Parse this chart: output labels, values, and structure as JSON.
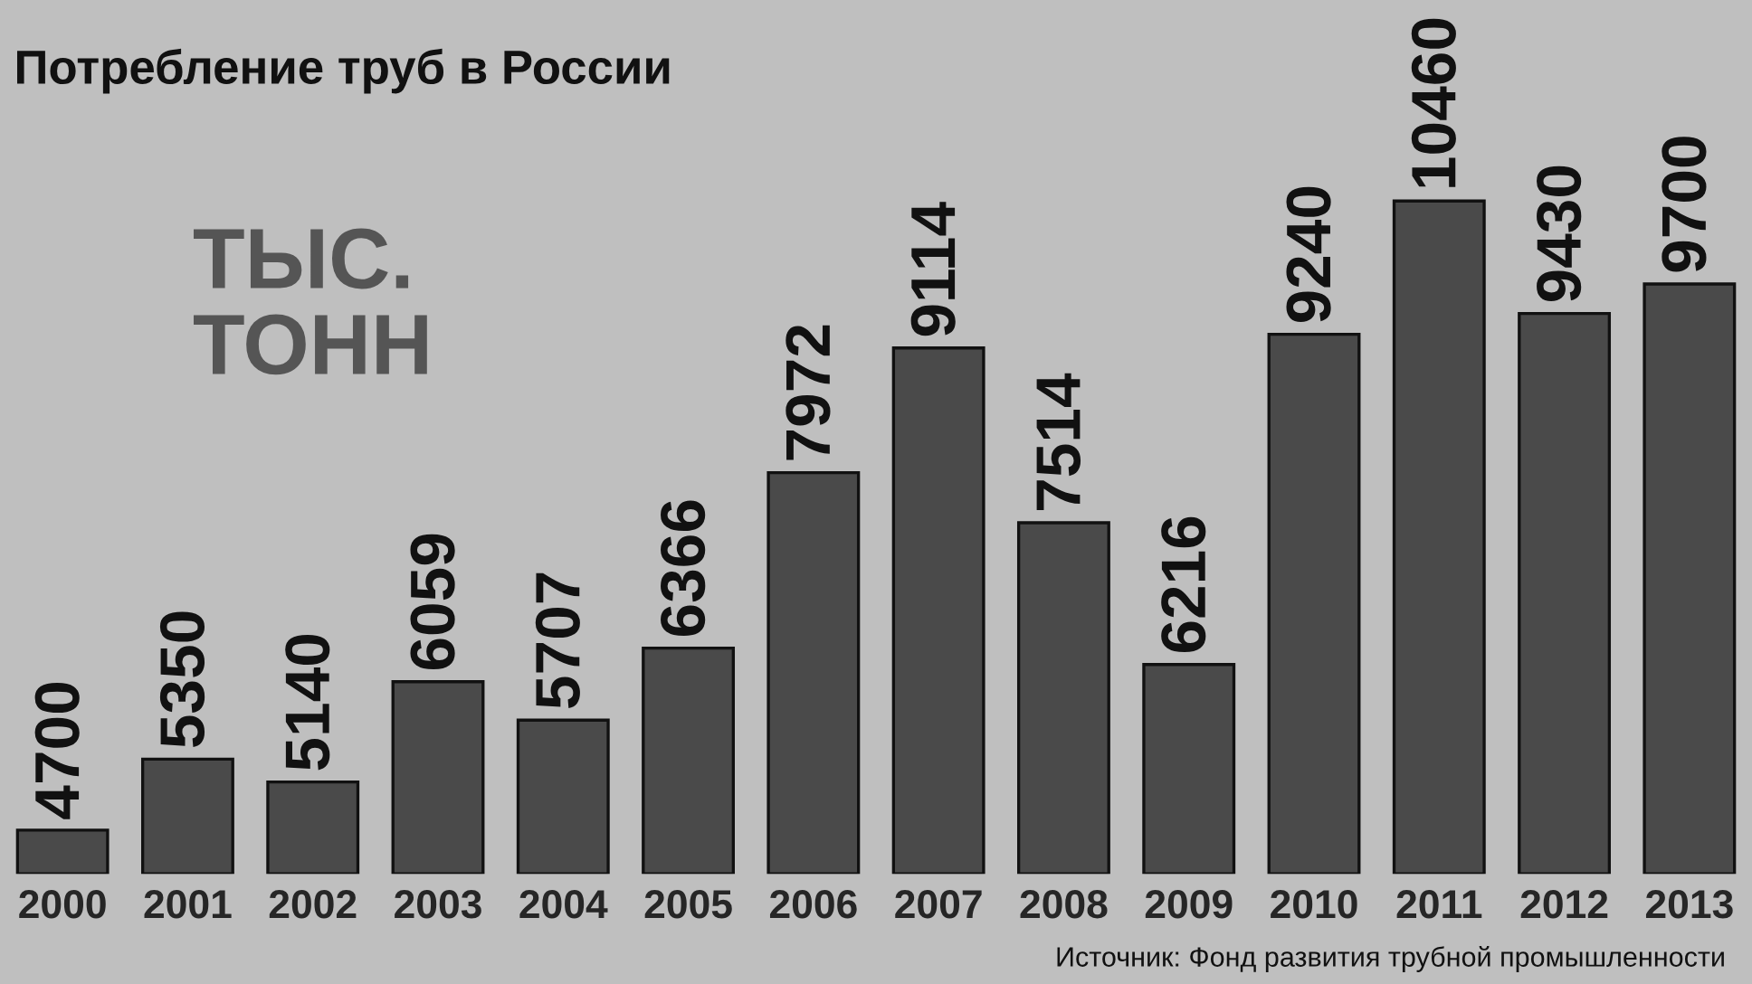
{
  "chart_data": {
    "type": "bar",
    "title": "Потребление труб в России",
    "subtitle": "ТЫС.\nТОНН",
    "categories": [
      "2000",
      "2001",
      "2002",
      "2003",
      "2004",
      "2005",
      "2006",
      "2007",
      "2008",
      "2009",
      "2010",
      "2011",
      "2012",
      "2013"
    ],
    "values": [
      4700,
      5350,
      5140,
      6059,
      5707,
      6366,
      7972,
      9114,
      7514,
      6216,
      9240,
      10460,
      9430,
      9700
    ],
    "color": "#4a4a4a",
    "ylim": [
      4300,
      12300
    ],
    "data_labels": true,
    "tick_labels": "x",
    "grid": false,
    "annotations": [
      "Источник: Фонд развития трубной промышленности"
    ]
  }
}
